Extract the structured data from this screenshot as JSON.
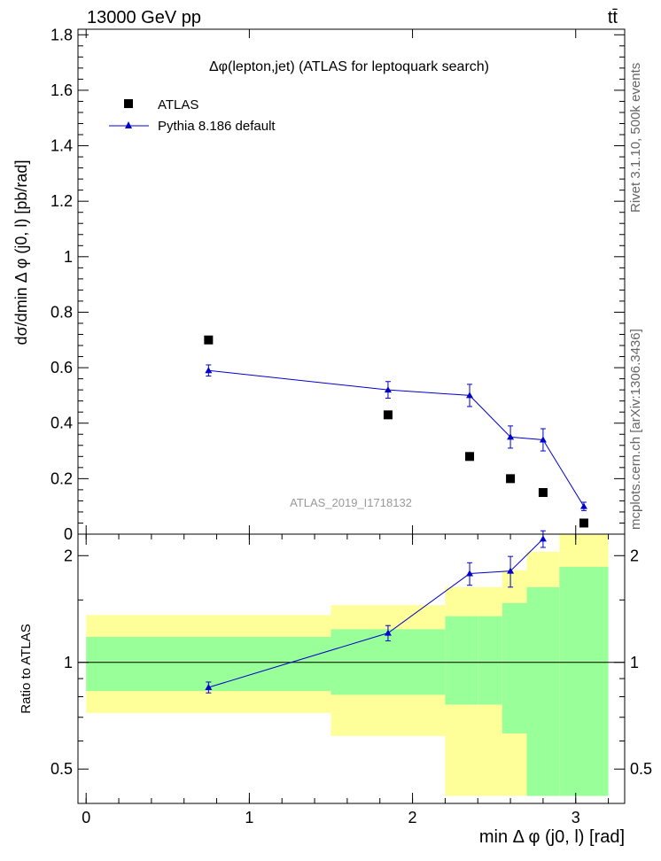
{
  "header": {
    "energy_label": "13000 GeV pp",
    "process_label": "tt̄"
  },
  "side_labels": {
    "rivet": "Rivet 3.1.10,  500k events",
    "mcplots": "mcplots.cern.ch [arXiv:1306.3436]"
  },
  "chart_data": [
    {
      "type": "scatter",
      "title": "Δφ(lepton,jet) (ATLAS for leptoquark search)",
      "ylabel": "dσ/dmin Δ φ (j0, l) [pb/rad]",
      "xlim": [
        -0.05,
        3.3
      ],
      "ylim": [
        0,
        1.82
      ],
      "y_ticks": [
        "0",
        "0.2",
        "0.4",
        "0.6",
        "0.8",
        "1",
        "1.2",
        "1.4",
        "1.6",
        "1.8"
      ],
      "y_tick_values": [
        0,
        0.2,
        0.4,
        0.6,
        0.8,
        1.0,
        1.2,
        1.4,
        1.6,
        1.8
      ],
      "watermark": "ATLAS_2019_I1718132",
      "legend": [
        "ATLAS",
        "Pythia 8.186 default"
      ],
      "series": [
        {
          "name": "ATLAS",
          "color": "#000000",
          "marker": "square",
          "x": [
            0.75,
            1.85,
            2.35,
            2.6,
            2.8,
            3.05
          ],
          "values": [
            0.7,
            0.43,
            0.28,
            0.2,
            0.15,
            0.04
          ]
        },
        {
          "name": "Pythia 8.186 default",
          "color": "#0000cc",
          "marker": "triangle",
          "x": [
            0.75,
            1.85,
            2.35,
            2.6,
            2.8,
            3.05
          ],
          "values": [
            0.59,
            0.52,
            0.5,
            0.35,
            0.34,
            0.1
          ],
          "errors": [
            0.02,
            0.03,
            0.04,
            0.04,
            0.04,
            0.015
          ]
        }
      ]
    },
    {
      "type": "line",
      "ylabel": "Ratio to ATLAS",
      "xlabel": "min Δ φ (j0, l) [rad]",
      "xlim": [
        -0.05,
        3.3
      ],
      "ylim": [
        0.4,
        2.3
      ],
      "scale": "log",
      "y_ticks": [
        "0.5",
        "1",
        "2"
      ],
      "y_tick_values": [
        0.5,
        1,
        2
      ],
      "x_ticks": [
        "0",
        "1",
        "2",
        "3"
      ],
      "x_tick_values": [
        0,
        1,
        2,
        3
      ],
      "bands": [
        {
          "x0": 0.0,
          "x1": 1.5,
          "yellow": [
            0.72,
            1.36
          ],
          "green": [
            0.83,
            1.18
          ]
        },
        {
          "x0": 1.5,
          "x1": 2.2,
          "yellow": [
            0.62,
            1.45
          ],
          "green": [
            0.81,
            1.24
          ]
        },
        {
          "x0": 2.2,
          "x1": 2.4,
          "yellow": [
            0.42,
            1.63
          ],
          "green": [
            0.76,
            1.35
          ]
        },
        {
          "x0": 2.4,
          "x1": 2.55,
          "yellow": [
            0.42,
            1.63
          ],
          "green": [
            0.76,
            1.35
          ]
        },
        {
          "x0": 2.55,
          "x1": 2.7,
          "yellow": [
            0.42,
            1.82
          ],
          "green": [
            0.63,
            1.47
          ]
        },
        {
          "x0": 2.7,
          "x1": 2.9,
          "yellow": [
            0.42,
            2.05
          ],
          "green": [
            0.42,
            1.63
          ]
        },
        {
          "x0": 2.9,
          "x1": 3.2,
          "yellow": [
            0.42,
            2.3
          ],
          "green": [
            0.42,
            1.86
          ]
        }
      ],
      "series": [
        {
          "name": "Pythia 8.186 default",
          "color": "#0000cc",
          "x": [
            0.75,
            1.85,
            2.35,
            2.6,
            2.8
          ],
          "values": [
            0.85,
            1.21,
            1.78,
            1.81,
            2.23
          ],
          "errors": [
            0.03,
            0.06,
            0.13,
            0.18,
            0.12
          ]
        }
      ]
    }
  ]
}
